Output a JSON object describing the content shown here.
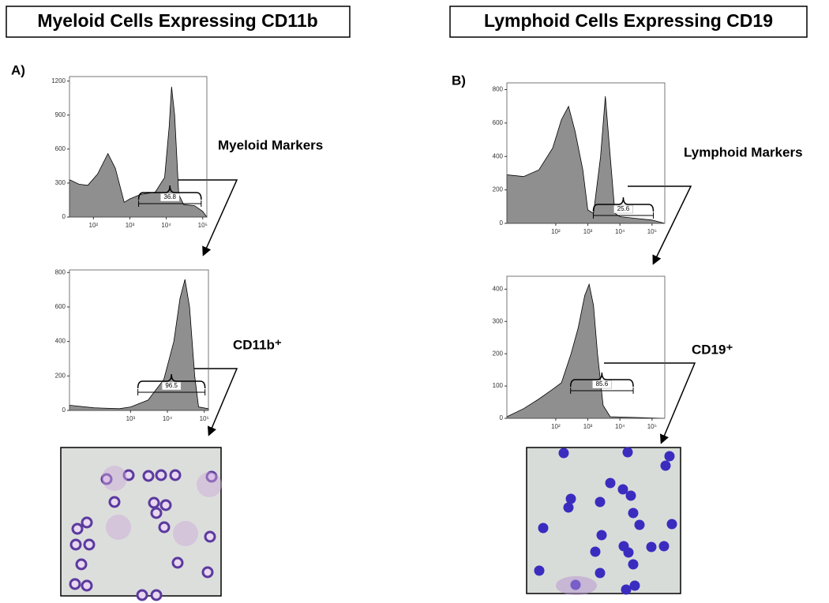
{
  "panels": [
    {
      "heading": "Myeloid Cells Expressing CD11b",
      "label": "A)",
      "markers": "Myeloid Markers",
      "positive": "CD11b⁺"
    },
    {
      "heading": "Lymphoid Cells Expressing CD19",
      "label": "B)",
      "markers": "Lymphoid Markers",
      "positive": "CD19⁺"
    }
  ],
  "chart_data": [
    {
      "type": "area",
      "color": "#8f8f8f",
      "log_x": true,
      "x": [
        22,
        40,
        70,
        130,
        250,
        400,
        700,
        1000,
        2000,
        5000,
        9000,
        12000,
        14000,
        17000,
        22000,
        30000,
        60000,
        100000,
        130000
      ],
      "values": [
        330,
        290,
        280,
        380,
        560,
        430,
        130,
        160,
        200,
        220,
        350,
        800,
        1150,
        900,
        200,
        110,
        100,
        50,
        0
      ],
      "xlim": [
        22,
        130000
      ],
      "ylim": [
        0,
        1240
      ],
      "xticks": [
        {
          "value": 100,
          "label": "10²"
        },
        {
          "value": 1000,
          "label": "10³"
        },
        {
          "value": 10000,
          "label": "10⁴"
        },
        {
          "value": 100000,
          "label": "10⁵"
        }
      ],
      "yticks": [
        0,
        300,
        600,
        900,
        1200
      ],
      "gate": {
        "start": 1740,
        "end": 91000,
        "value": 36.8
      }
    },
    {
      "type": "area",
      "color": "#8f8f8f",
      "log_x": true,
      "x": [
        22,
        100,
        500,
        1000,
        3000,
        8000,
        15000,
        22000,
        30000,
        40000,
        55000,
        70000,
        130000
      ],
      "values": [
        30,
        15,
        10,
        20,
        60,
        180,
        400,
        650,
        760,
        600,
        200,
        20,
        10
      ],
      "xlim": [
        22,
        130000
      ],
      "ylim": [
        0,
        815
      ],
      "xticks": [
        {
          "value": 1000,
          "label": "10³"
        },
        {
          "value": 10000,
          "label": "10⁴"
        },
        {
          "value": 100000,
          "label": "10⁵"
        }
      ],
      "yticks": [
        0,
        200,
        400,
        600,
        800
      ],
      "gate": {
        "start": 1580,
        "end": 105000,
        "value": 96.5
      }
    },
    {
      "type": "area",
      "color": "#8f8f8f",
      "log_x": true,
      "x": [
        3,
        10,
        30,
        80,
        150,
        250,
        400,
        700,
        1000,
        1500,
        2500,
        3500,
        5000,
        7000,
        10000,
        30000,
        100000,
        250000
      ],
      "values": [
        290,
        280,
        320,
        450,
        620,
        700,
        550,
        320,
        80,
        60,
        400,
        760,
        400,
        60,
        40,
        30,
        20,
        0
      ],
      "xlim": [
        3,
        250000
      ],
      "ylim": [
        0,
        840
      ],
      "xticks": [
        {
          "value": 100,
          "label": "10²"
        },
        {
          "value": 1000,
          "label": "10³"
        },
        {
          "value": 10000,
          "label": "10⁴"
        },
        {
          "value": 100000,
          "label": "10⁵"
        }
      ],
      "yticks": [
        0,
        200,
        400,
        600,
        800
      ],
      "gate": {
        "start": 1480,
        "end": 110000,
        "value": 25.6
      }
    },
    {
      "type": "area",
      "color": "#8f8f8f",
      "log_x": true,
      "x": [
        3,
        10,
        30,
        80,
        150,
        300,
        500,
        800,
        1100,
        1500,
        2000,
        3000,
        5000,
        250000
      ],
      "values": [
        5,
        30,
        60,
        90,
        110,
        200,
        280,
        380,
        415,
        350,
        200,
        40,
        5,
        0
      ],
      "xlim": [
        3,
        250000
      ],
      "ylim": [
        0,
        440
      ],
      "xticks": [
        {
          "value": 100,
          "label": "10²"
        },
        {
          "value": 1000,
          "label": "10³"
        },
        {
          "value": 10000,
          "label": "10⁴"
        },
        {
          "value": 100000,
          "label": "10⁵"
        }
      ],
      "yticks": [
        0,
        100,
        200,
        300,
        400
      ],
      "gate": {
        "start": 290,
        "end": 26000,
        "value": 85.6
      }
    }
  ]
}
